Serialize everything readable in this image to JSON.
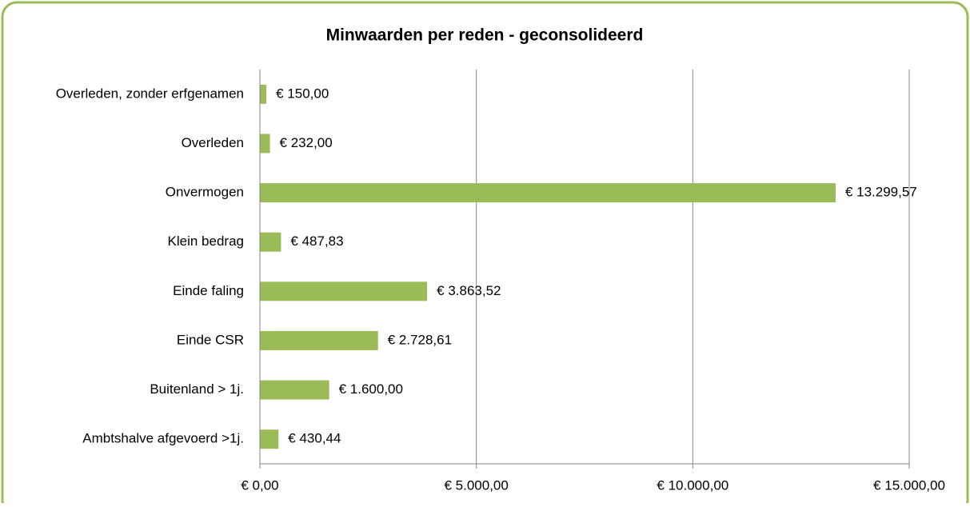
{
  "chart_data": {
    "type": "bar",
    "orientation": "horizontal",
    "title": "Minwaarden per reden - geconsolideerd",
    "categories": [
      "Overleden, zonder erfgenamen",
      "Overleden",
      "Onvermogen",
      "Klein bedrag",
      "Einde faling",
      "Einde CSR",
      "Buitenland > 1j.",
      "Ambtshalve afgevoerd >1j."
    ],
    "values": [
      150,
      232,
      13299.57,
      487.83,
      3863.52,
      2728.61,
      1600,
      430.44
    ],
    "value_labels": [
      "€ 150,00",
      "€ 232,00",
      "€ 13.299,57",
      "€ 487,83",
      "€ 3.863,52",
      "€ 2.728,61",
      "€ 1.600,00",
      "€ 430,44"
    ],
    "color": "#9bbb59",
    "xlim": [
      0,
      15000
    ],
    "xticks": [
      {
        "value": 0,
        "label": "€ 0,00"
      },
      {
        "value": 5000,
        "label": "€ 5.000,00"
      },
      {
        "value": 10000,
        "label": "€ 10.000,00"
      },
      {
        "value": 15000,
        "label": "€ 15.000,00"
      }
    ],
    "grid": true
  }
}
